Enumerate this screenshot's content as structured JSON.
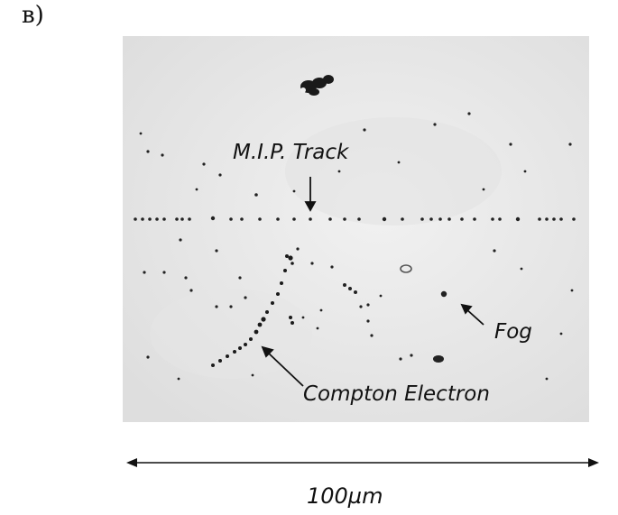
{
  "panel_label": "в)",
  "micrograph": {
    "annotations": {
      "mip_track": "M.I.P. Track",
      "fog": "Fog",
      "compton_electron": "Compton Electron"
    }
  },
  "scale_bar": {
    "label": "100µm"
  },
  "colors": {
    "background": "#e9e9e9",
    "grain": "#111111"
  }
}
